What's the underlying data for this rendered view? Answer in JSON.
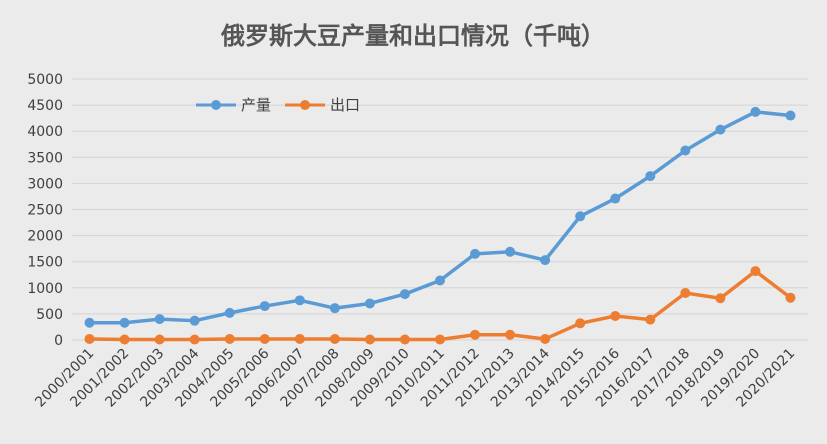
{
  "chart_data": {
    "type": "line",
    "title": "俄罗斯大豆产量和出口情况（千吨）",
    "xlabel": "",
    "ylabel": "",
    "ylim": [
      0,
      5000
    ],
    "yticks": [
      "0",
      "500",
      "1000",
      "1500",
      "2000",
      "2500",
      "3000",
      "3500",
      "4000",
      "4500",
      "5000"
    ],
    "grid": true,
    "legend_position": "top-left",
    "categories": [
      "2000/2001",
      "2001/2002",
      "2002/2003",
      "2003/2004",
      "2004/2005",
      "2005/2006",
      "2006/2007",
      "2007/2008",
      "2008/2009",
      "2009/2010",
      "2010/2011",
      "2011/2012",
      "2012/2013",
      "2013/2014",
      "2014/2015",
      "2015/2016",
      "2016/2017",
      "2017/2018",
      "2018/2019",
      "2019/2020",
      "2020/2021"
    ],
    "series": [
      {
        "name": "产量",
        "color": "#5b9bd5",
        "values": [
          330,
          330,
          400,
          370,
          520,
          650,
          760,
          610,
          700,
          880,
          1140,
          1650,
          1690,
          1530,
          2370,
          2710,
          3140,
          3630,
          4030,
          4370,
          4300
        ]
      },
      {
        "name": "出口",
        "color": "#ed7d31",
        "values": [
          20,
          10,
          10,
          10,
          20,
          20,
          20,
          20,
          10,
          10,
          10,
          100,
          100,
          20,
          320,
          460,
          390,
          900,
          800,
          1320,
          810
        ]
      }
    ]
  }
}
